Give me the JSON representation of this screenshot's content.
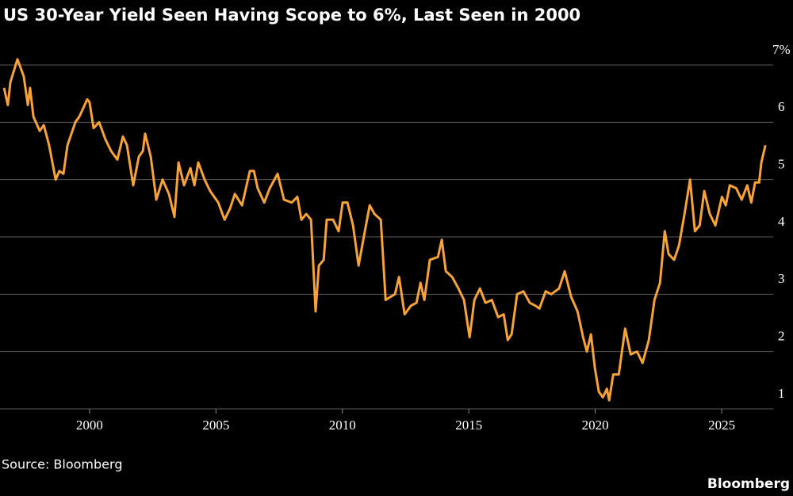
{
  "chart_data": {
    "type": "line",
    "title": "US 30-Year Yield Seen Having Scope to 6%, Last Seen in 2000",
    "source": "Source: Bloomberg",
    "brand": "Bloomberg",
    "color": "#f7a338",
    "grid": true,
    "xlim": [
      1996.46,
      2027.13
    ],
    "xticks": [
      2000,
      2005,
      2010,
      2015,
      2020,
      2025
    ],
    "ylim": [
      1,
      7
    ],
    "yticks": [
      1,
      2,
      3,
      4,
      5,
      6,
      {
        "value": 7,
        "label": "7%"
      }
    ],
    "x": [
      1996.62,
      1996.77,
      1996.87,
      1997.15,
      1997.4,
      1997.56,
      1997.65,
      1997.78,
      1998.03,
      1998.19,
      1998.4,
      1998.66,
      1998.81,
      1998.97,
      1999.13,
      1999.44,
      1999.6,
      1999.91,
      2000.0,
      2000.16,
      2000.38,
      2000.63,
      2000.85,
      2001.1,
      2001.32,
      2001.48,
      2001.73,
      2001.95,
      2002.11,
      2002.2,
      2002.42,
      2002.64,
      2002.89,
      2003.14,
      2003.36,
      2003.52,
      2003.74,
      2003.99,
      2004.15,
      2004.3,
      2004.55,
      2004.77,
      2005.09,
      2005.34,
      2005.56,
      2005.75,
      2006.03,
      2006.34,
      2006.5,
      2006.65,
      2006.91,
      2007.13,
      2007.44,
      2007.69,
      2008.0,
      2008.22,
      2008.38,
      2008.57,
      2008.76,
      2008.94,
      2009.07,
      2009.26,
      2009.38,
      2009.63,
      2009.85,
      2010.01,
      2010.2,
      2010.42,
      2010.64,
      2010.89,
      2011.08,
      2011.27,
      2011.52,
      2011.71,
      2011.89,
      2012.08,
      2012.24,
      2012.46,
      2012.71,
      2012.93,
      2013.09,
      2013.24,
      2013.46,
      2013.78,
      2013.93,
      2014.09,
      2014.34,
      2014.59,
      2014.81,
      2015.03,
      2015.22,
      2015.44,
      2015.66,
      2015.91,
      2016.16,
      2016.38,
      2016.54,
      2016.69,
      2016.91,
      2017.16,
      2017.41,
      2017.63,
      2017.79,
      2018.04,
      2018.26,
      2018.57,
      2018.79,
      2019.05,
      2019.3,
      2019.52,
      2019.67,
      2019.83,
      2019.99,
      2020.14,
      2020.3,
      2020.46,
      2020.55,
      2020.71,
      2020.93,
      2021.18,
      2021.4,
      2021.65,
      2021.87,
      2022.12,
      2022.34,
      2022.56,
      2022.75,
      2022.9,
      2023.12,
      2023.31,
      2023.53,
      2023.75,
      2023.94,
      2024.13,
      2024.31,
      2024.53,
      2024.75,
      2025.01,
      2025.16,
      2025.32,
      2025.57,
      2025.79,
      2026.01,
      2026.17,
      2026.32,
      2026.48,
      2026.57,
      2026.73
    ],
    "values": [
      6.6,
      6.3,
      6.7,
      7.1,
      6.8,
      6.3,
      6.6,
      6.1,
      5.85,
      5.95,
      5.6,
      5.0,
      5.15,
      5.1,
      5.6,
      6.0,
      6.1,
      6.4,
      6.35,
      5.9,
      6.0,
      5.7,
      5.5,
      5.35,
      5.75,
      5.6,
      4.9,
      5.4,
      5.5,
      5.8,
      5.4,
      4.65,
      5.0,
      4.75,
      4.35,
      5.3,
      4.9,
      5.2,
      4.9,
      5.3,
      5.0,
      4.8,
      4.6,
      4.3,
      4.5,
      4.75,
      4.55,
      5.15,
      5.15,
      4.85,
      4.6,
      4.85,
      5.1,
      4.65,
      4.6,
      4.7,
      4.3,
      4.4,
      4.3,
      2.7,
      3.5,
      3.6,
      4.3,
      4.3,
      4.1,
      4.6,
      4.6,
      4.2,
      3.5,
      4.1,
      4.55,
      4.4,
      4.3,
      2.9,
      2.95,
      3.0,
      3.3,
      2.65,
      2.8,
      2.85,
      3.2,
      2.9,
      3.6,
      3.65,
      3.95,
      3.4,
      3.3,
      3.1,
      2.9,
      2.25,
      2.9,
      3.1,
      2.85,
      2.9,
      2.6,
      2.65,
      2.2,
      2.3,
      3.0,
      3.05,
      2.85,
      2.8,
      2.75,
      3.05,
      3.0,
      3.1,
      3.4,
      2.95,
      2.7,
      2.25,
      2.0,
      2.3,
      1.7,
      1.3,
      1.2,
      1.35,
      1.15,
      1.6,
      1.6,
      2.4,
      1.95,
      2.0,
      1.8,
      2.2,
      2.9,
      3.2,
      4.1,
      3.7,
      3.6,
      3.85,
      4.4,
      5.0,
      4.1,
      4.2,
      4.8,
      4.4,
      4.2,
      4.7,
      4.55,
      4.9,
      4.85,
      4.65,
      4.9,
      4.6,
      4.95,
      4.95,
      5.3,
      5.6
    ]
  }
}
